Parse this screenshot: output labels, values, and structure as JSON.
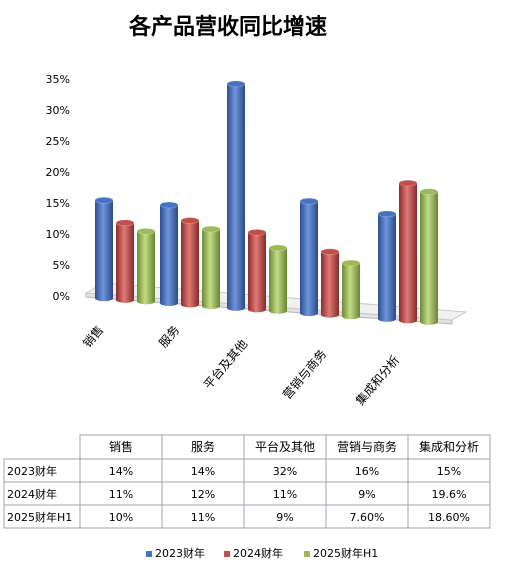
{
  "chart_data": {
    "type": "bar",
    "title": "各产品营收同比增速",
    "categories": [
      "销售",
      "服务",
      "平台及其他",
      "营销与商务",
      "集成和分析"
    ],
    "series": [
      {
        "name": "2023财年",
        "values": [
          14,
          14,
          32,
          16,
          15
        ],
        "labels": [
          "14%",
          "14%",
          "32%",
          "16%",
          "15%"
        ]
      },
      {
        "name": "2024财年",
        "values": [
          11,
          12,
          11,
          9,
          19.6
        ],
        "labels": [
          "11%",
          "12%",
          "11%",
          "9%",
          "19.6%"
        ]
      },
      {
        "name": "2025财年H1",
        "values": [
          10,
          11,
          9,
          7.6,
          18.6
        ],
        "labels": [
          "10%",
          "11%",
          "9%",
          "7.60%",
          "18.60%"
        ]
      }
    ],
    "yticks": [
      "0%",
      "5%",
      "10%",
      "15%",
      "20%",
      "25%",
      "30%",
      "35%"
    ],
    "ylim": [
      0,
      35
    ],
    "legend_position": "bottom",
    "colors": [
      "#4472c4",
      "#c0504d",
      "#9bbb59"
    ]
  }
}
